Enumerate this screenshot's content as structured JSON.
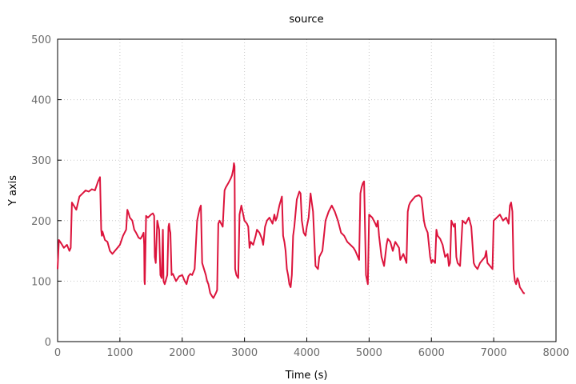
{
  "chart_data": {
    "type": "line",
    "title": "source",
    "xlabel": "Time (s)",
    "ylabel": "Y axis",
    "xlim": [
      0,
      8000
    ],
    "ylim": [
      0,
      500
    ],
    "xticks": [
      0,
      1000,
      2000,
      3000,
      4000,
      5000,
      6000,
      7000,
      8000
    ],
    "yticks": [
      0,
      100,
      200,
      300,
      400,
      500
    ],
    "grid": true,
    "legend": "none",
    "series": [
      {
        "color": "#dc143c",
        "x": [
          0,
          20,
          60,
          100,
          150,
          190,
          210,
          230,
          260,
          300,
          350,
          400,
          450,
          500,
          550,
          600,
          650,
          680,
          700,
          710,
          720,
          760,
          800,
          840,
          880,
          920,
          960,
          1000,
          1050,
          1100,
          1120,
          1140,
          1160,
          1200,
          1230,
          1260,
          1300,
          1330,
          1360,
          1380,
          1390,
          1395,
          1400,
          1420,
          1450,
          1500,
          1530,
          1550,
          1560,
          1575,
          1600,
          1630,
          1650,
          1670,
          1690,
          1700,
          1720,
          1760,
          1780,
          1790,
          1800,
          1810,
          1830,
          1850,
          1880,
          1900,
          1950,
          2000,
          2040,
          2070,
          2100,
          2130,
          2160,
          2200,
          2240,
          2280,
          2300,
          2320,
          2350,
          2380,
          2400,
          2420,
          2450,
          2480,
          2500,
          2540,
          2560,
          2580,
          2600,
          2650,
          2680,
          2700,
          2740,
          2780,
          2800,
          2820,
          2830,
          2840,
          2850,
          2870,
          2900,
          2920,
          2950,
          3000,
          3040,
          3060,
          3080,
          3100,
          3140,
          3180,
          3200,
          3240,
          3280,
          3300,
          3330,
          3360,
          3400,
          3450,
          3480,
          3500,
          3520,
          3560,
          3600,
          3620,
          3640,
          3660,
          3680,
          3700,
          3720,
          3740,
          3760,
          3780,
          3800,
          3840,
          3880,
          3900,
          3920,
          3950,
          3980,
          4000,
          4030,
          4060,
          4080,
          4100,
          4140,
          4180,
          4200,
          4250,
          4300,
          4350,
          4400,
          4450,
          4500,
          4550,
          4600,
          4650,
          4700,
          4750,
          4780,
          4820,
          4840,
          4860,
          4880,
          4900,
          4920,
          4950,
          4980,
          5000,
          5050,
          5100,
          5120,
          5140,
          5160,
          5200,
          5240,
          5280,
          5300,
          5340,
          5380,
          5420,
          5480,
          5500,
          5550,
          5600,
          5620,
          5640,
          5660,
          5700,
          5740,
          5800,
          5840,
          5880,
          5900,
          5940,
          5980,
          6000,
          6020,
          6060,
          6080,
          6100,
          6140,
          6180,
          6200,
          6220,
          6260,
          6280,
          6300,
          6320,
          6360,
          6380,
          6400,
          6420,
          6460,
          6500,
          6550,
          6600,
          6640,
          6680,
          6700,
          6740,
          6780,
          6820,
          6860,
          6880,
          6900,
          6940,
          6980,
          7000,
          7050,
          7100,
          7150,
          7200,
          7240,
          7260,
          7280,
          7300,
          7320,
          7340,
          7360,
          7380,
          7400,
          7420,
          7450,
          7480,
          7500
        ],
        "y": [
          120,
          168,
          162,
          155,
          160,
          150,
          155,
          230,
          225,
          218,
          240,
          245,
          250,
          248,
          252,
          250,
          265,
          272,
          185,
          175,
          182,
          168,
          165,
          150,
          145,
          150,
          155,
          160,
          175,
          185,
          218,
          212,
          205,
          200,
          185,
          180,
          172,
          170,
          175,
          180,
          160,
          100,
          95,
          208,
          205,
          210,
          212,
          208,
          140,
          130,
          200,
          185,
          110,
          105,
          185,
          100,
          95,
          110,
          190,
          195,
          185,
          180,
          110,
          112,
          105,
          100,
          108,
          110,
          100,
          95,
          108,
          112,
          110,
          120,
          200,
          220,
          225,
          130,
          120,
          110,
          100,
          95,
          80,
          75,
          72,
          80,
          85,
          195,
          200,
          190,
          250,
          255,
          262,
          270,
          275,
          285,
          295,
          290,
          120,
          110,
          105,
          210,
          225,
          200,
          195,
          190,
          155,
          165,
          160,
          175,
          185,
          180,
          170,
          160,
          190,
          200,
          205,
          195,
          210,
          200,
          205,
          225,
          240,
          175,
          165,
          150,
          120,
          110,
          95,
          90,
          110,
          175,
          190,
          235,
          248,
          245,
          200,
          180,
          175,
          190,
          205,
          245,
          230,
          215,
          125,
          120,
          140,
          150,
          200,
          215,
          225,
          215,
          200,
          180,
          175,
          165,
          160,
          155,
          150,
          140,
          135,
          245,
          255,
          262,
          265,
          110,
          95,
          210,
          205,
          195,
          190,
          200,
          175,
          140,
          125,
          160,
          170,
          165,
          150,
          165,
          155,
          135,
          145,
          130,
          215,
          225,
          230,
          235,
          240,
          242,
          238,
          200,
          190,
          180,
          140,
          130,
          135,
          130,
          185,
          175,
          170,
          160,
          150,
          140,
          145,
          125,
          130,
          200,
          190,
          195,
          140,
          130,
          125,
          200,
          195,
          205,
          190,
          130,
          125,
          120,
          130,
          135,
          140,
          150,
          130,
          125,
          120,
          200,
          205,
          210,
          200,
          205,
          195,
          225,
          230,
          215,
          120,
          100,
          95,
          105,
          100,
          90,
          85,
          80,
          80
        ]
      }
    ]
  }
}
